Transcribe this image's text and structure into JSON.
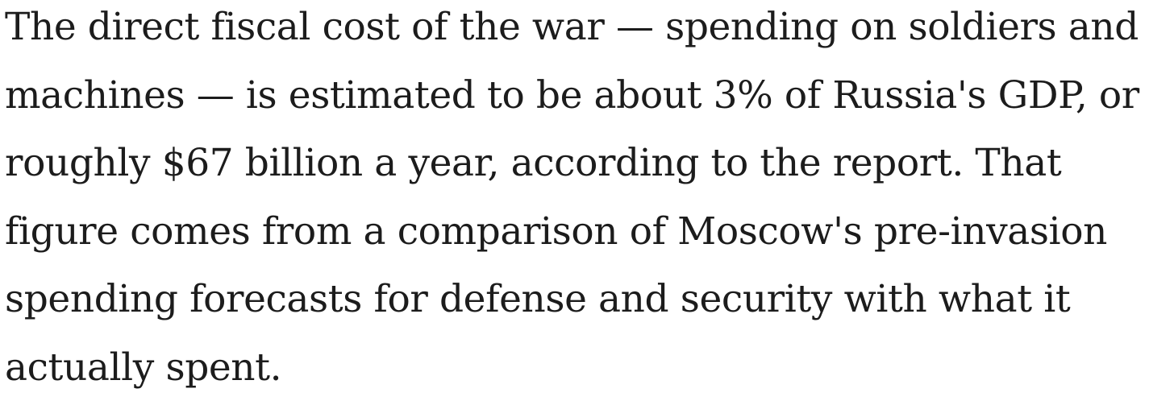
{
  "article": {
    "paragraph_lines": [
      "The direct fiscal cost of the war — spending on soldiers and",
      "machines — is estimated to be about 3% of Russia's GDP, or",
      "roughly $67 billion a year, according to the report. That",
      "figure comes from a comparison of Moscow's pre-invasion",
      "spending forecasts for defense and security with what it",
      "actually spent."
    ]
  }
}
